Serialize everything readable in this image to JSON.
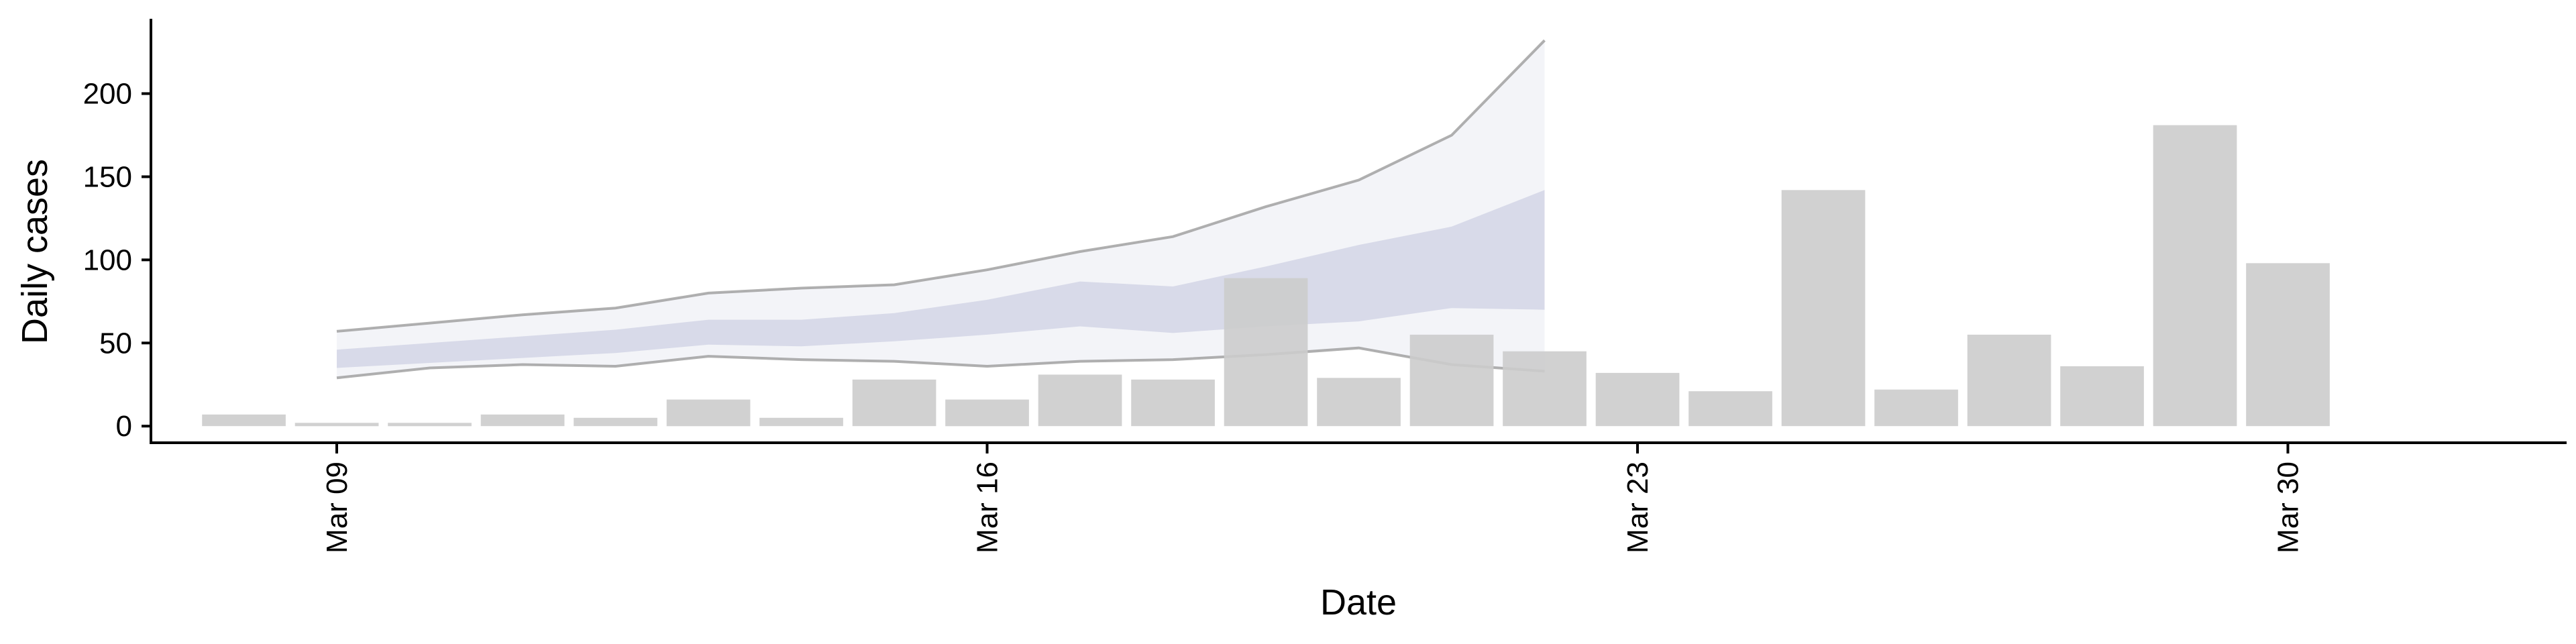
{
  "chart_data": {
    "type": "bar",
    "xlabel": "Date",
    "ylabel": "Daily cases",
    "ylim": [
      -10,
      245
    ],
    "xlim": [
      "2020-03-07",
      "2020-04-02"
    ],
    "yticks": [
      0,
      50,
      100,
      150,
      200
    ],
    "xticks": [
      {
        "date": "2020-03-09",
        "label": "Mar 09"
      },
      {
        "date": "2020-03-16",
        "label": "Mar 16"
      },
      {
        "date": "2020-03-23",
        "label": "Mar 23"
      },
      {
        "date": "2020-03-30",
        "label": "Mar 30"
      }
    ],
    "grid": false,
    "legend": "none",
    "bars": [
      {
        "date": "2020-03-08",
        "value": 7
      },
      {
        "date": "2020-03-09",
        "value": 2
      },
      {
        "date": "2020-03-10",
        "value": 2
      },
      {
        "date": "2020-03-11",
        "value": 7
      },
      {
        "date": "2020-03-12",
        "value": 5
      },
      {
        "date": "2020-03-13",
        "value": 16
      },
      {
        "date": "2020-03-14",
        "value": 5
      },
      {
        "date": "2020-03-15",
        "value": 28
      },
      {
        "date": "2020-03-16",
        "value": 16
      },
      {
        "date": "2020-03-17",
        "value": 31
      },
      {
        "date": "2020-03-18",
        "value": 28
      },
      {
        "date": "2020-03-19",
        "value": 89
      },
      {
        "date": "2020-03-20",
        "value": 29
      },
      {
        "date": "2020-03-21",
        "value": 55
      },
      {
        "date": "2020-03-22",
        "value": 45
      },
      {
        "date": "2020-03-23",
        "value": 32
      },
      {
        "date": "2020-03-24",
        "value": 21
      },
      {
        "date": "2020-03-25",
        "value": 142
      },
      {
        "date": "2020-03-26",
        "value": 22
      },
      {
        "date": "2020-03-27",
        "value": 55
      },
      {
        "date": "2020-03-28",
        "value": 36
      },
      {
        "date": "2020-03-29",
        "value": 181
      },
      {
        "date": "2020-03-30",
        "value": 98
      }
    ],
    "estimate": [
      {
        "date": "2020-03-09",
        "outer_low": 29,
        "outer_high": 57,
        "inner_low": 35,
        "inner_high": 46
      },
      {
        "date": "2020-03-10",
        "outer_low": 35,
        "outer_high": 62,
        "inner_low": 38,
        "inner_high": 50
      },
      {
        "date": "2020-03-11",
        "outer_low": 37,
        "outer_high": 67,
        "inner_low": 41,
        "inner_high": 54
      },
      {
        "date": "2020-03-12",
        "outer_low": 36,
        "outer_high": 71,
        "inner_low": 44,
        "inner_high": 58
      },
      {
        "date": "2020-03-13",
        "outer_low": 42,
        "outer_high": 80,
        "inner_low": 49,
        "inner_high": 64
      },
      {
        "date": "2020-03-14",
        "outer_low": 40,
        "outer_high": 83,
        "inner_low": 48,
        "inner_high": 64
      },
      {
        "date": "2020-03-15",
        "outer_low": 39,
        "outer_high": 85,
        "inner_low": 51,
        "inner_high": 68
      },
      {
        "date": "2020-03-16",
        "outer_low": 36,
        "outer_high": 94,
        "inner_low": 55,
        "inner_high": 76
      },
      {
        "date": "2020-03-17",
        "outer_low": 39,
        "outer_high": 105,
        "inner_low": 60,
        "inner_high": 87
      },
      {
        "date": "2020-03-18",
        "outer_low": 40,
        "outer_high": 114,
        "inner_low": 56,
        "inner_high": 84
      },
      {
        "date": "2020-03-19",
        "outer_low": 43,
        "outer_high": 132,
        "inner_low": 60,
        "inner_high": 96
      },
      {
        "date": "2020-03-20",
        "outer_low": 47,
        "outer_high": 148,
        "inner_low": 63,
        "inner_high": 109
      },
      {
        "date": "2020-03-21",
        "outer_low": 37,
        "outer_high": 175,
        "inner_low": 71,
        "inner_high": 120
      },
      {
        "date": "2020-03-22",
        "outer_low": 33,
        "outer_high": 232,
        "inner_low": 70,
        "inner_high": 142
      }
    ],
    "colors": {
      "bar": "#cccccc",
      "outer_band": "#e9ebf2",
      "inner_band": "#c9cde0",
      "band_edge": "#8f8f8f",
      "axis": "#000000"
    }
  }
}
